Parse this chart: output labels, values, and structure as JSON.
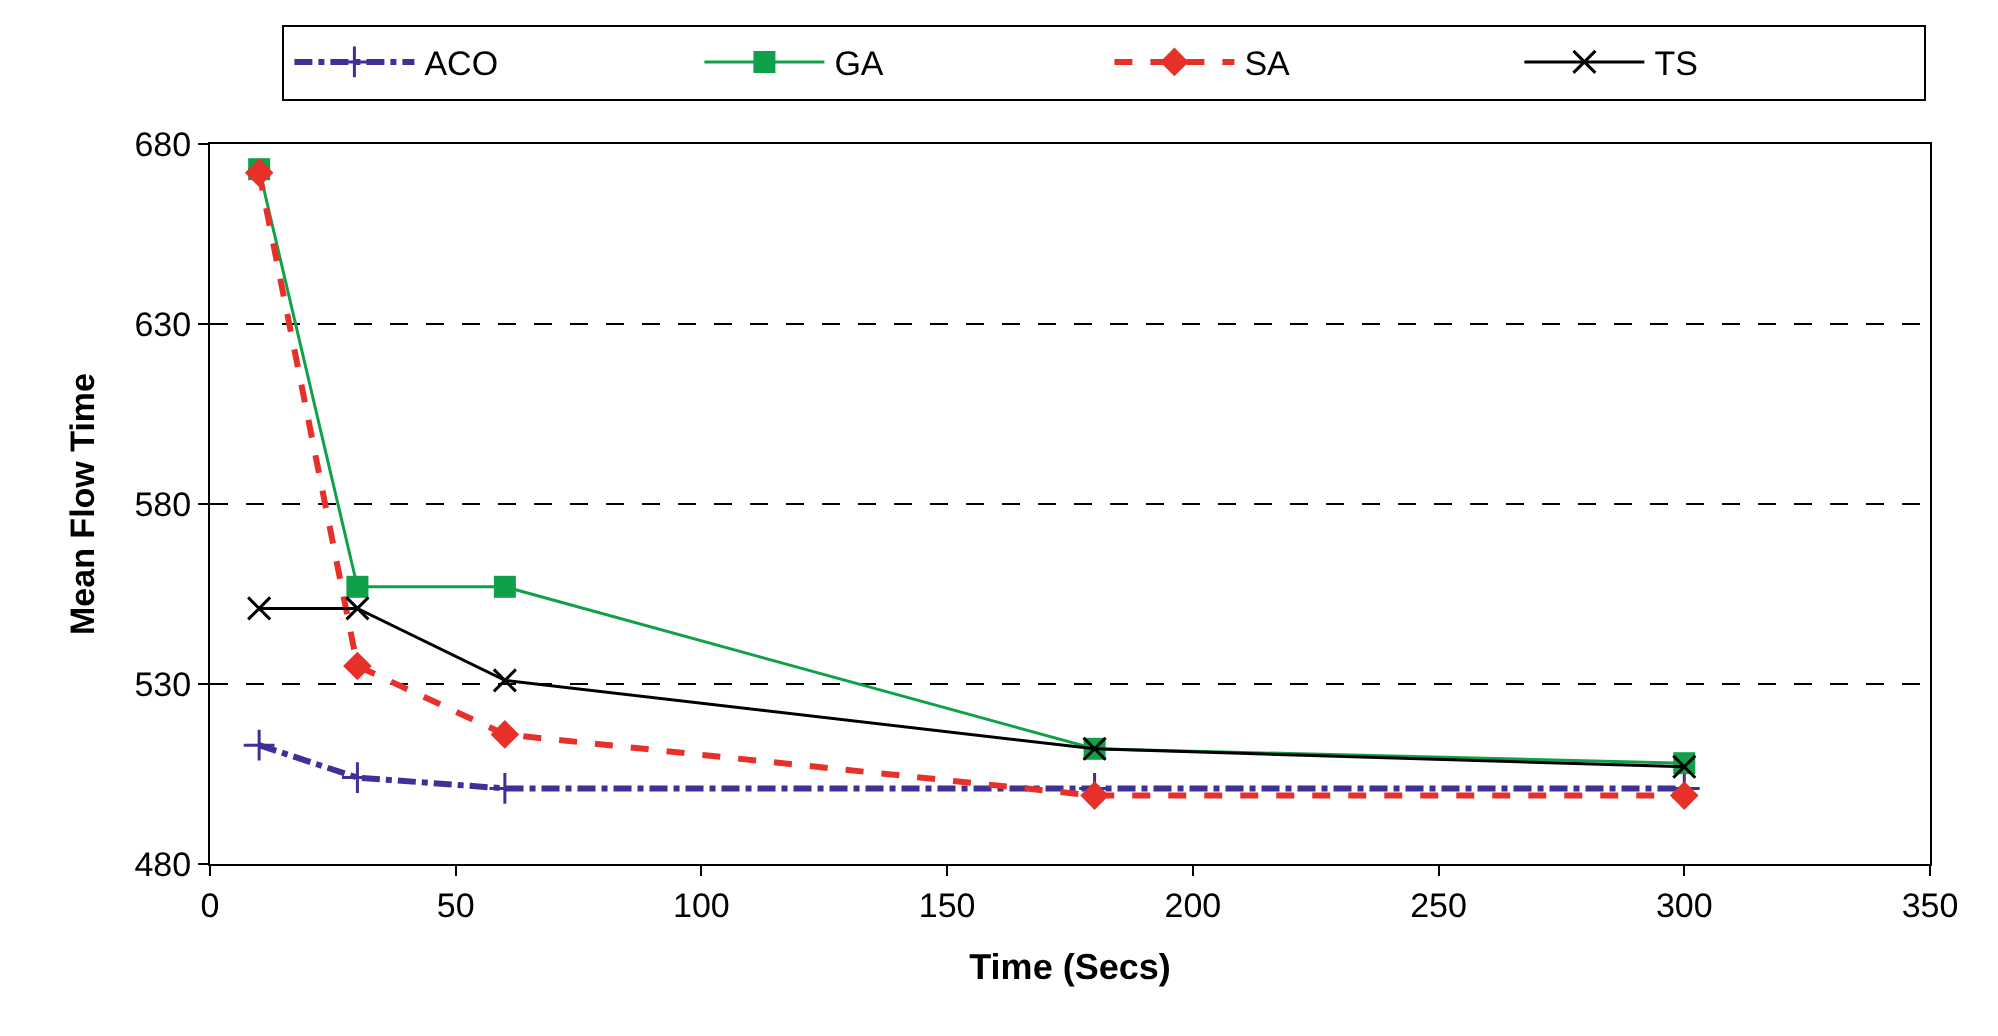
{
  "chart_data": {
    "type": "line",
    "xlabel": "Time (Secs)",
    "ylabel": "Mean Flow Time",
    "x": [
      10,
      30,
      60,
      180,
      300
    ],
    "series": [
      {
        "name": "ACO",
        "color": "#3f2f98",
        "values": [
          513,
          504,
          501,
          501,
          501
        ],
        "marker": "plus",
        "line_style": "dashdot"
      },
      {
        "name": "GA",
        "color": "#11a04a",
        "values": [
          673,
          557,
          557,
          512,
          508
        ],
        "marker": "square",
        "line_style": "solid"
      },
      {
        "name": "SA",
        "color": "#e8302a",
        "values": [
          672,
          535,
          516,
          499,
          499
        ],
        "marker": "diamond",
        "line_style": "dashed"
      },
      {
        "name": "TS",
        "color": "#000000",
        "values": [
          551,
          551,
          531,
          512,
          507
        ],
        "marker": "cross",
        "line_style": "solid"
      }
    ],
    "xlim": [
      0,
      350
    ],
    "xticks": [
      0,
      50,
      100,
      150,
      200,
      250,
      300,
      350
    ],
    "ylim": [
      480,
      680
    ],
    "yticks": [
      480,
      530,
      580,
      630,
      680
    ],
    "grid": "y",
    "legend": "top"
  }
}
